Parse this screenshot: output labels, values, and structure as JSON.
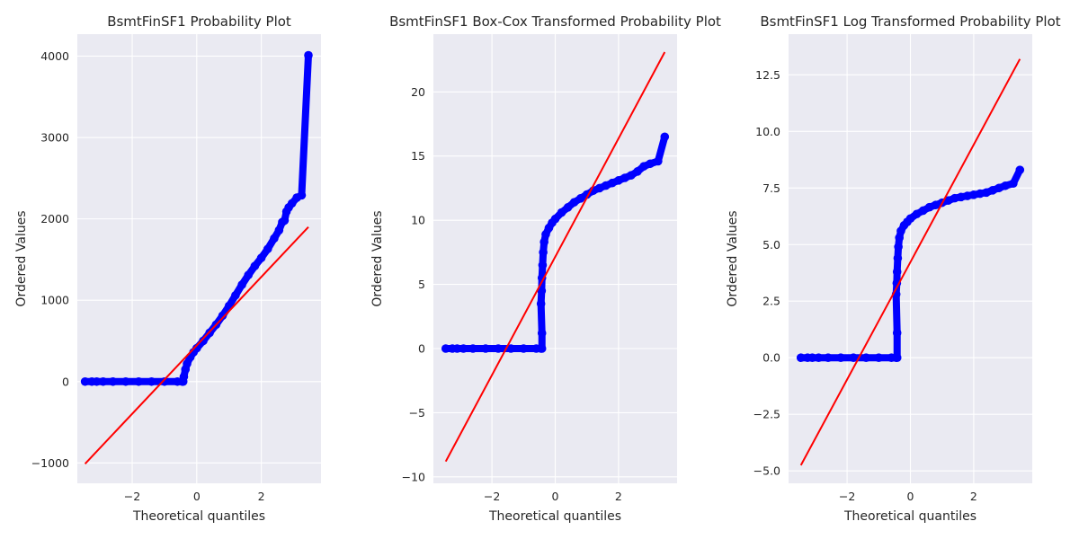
{
  "colors": {
    "axes_background": "#eaeaf2",
    "grid": "#ffffff",
    "points": "#0000ff",
    "fit_line": "#ff0000"
  },
  "chart_data": [
    {
      "type": "scatter",
      "title": "BsmtFinSF1 Probability Plot",
      "xlabel": "Theoretical quantiles",
      "ylabel": "Ordered Values",
      "xlim": [
        -3.7,
        3.85
      ],
      "ylim": [
        -1250,
        4270
      ],
      "xticks": [
        -2,
        0,
        2
      ],
      "yticks": [
        -1000,
        0,
        1000,
        2000,
        3000,
        4000
      ],
      "xtick_labels": [
        "−2",
        "0",
        "2"
      ],
      "ytick_labels": [
        "−1000",
        "0",
        "1000",
        "2000",
        "3000",
        "4000"
      ],
      "grid": true,
      "series": [
        {
          "kind": "points",
          "points": [
            [
              -3.46,
              0
            ],
            [
              -3.25,
              0
            ],
            [
              -3.1,
              0
            ],
            [
              -2.9,
              0
            ],
            [
              -2.6,
              0
            ],
            [
              -2.2,
              0
            ],
            [
              -1.8,
              0
            ],
            [
              -1.4,
              0
            ],
            [
              -1.0,
              0
            ],
            [
              -0.6,
              0
            ],
            [
              -0.45,
              0
            ],
            [
              -0.42,
              0
            ],
            [
              -0.4,
              60
            ],
            [
              -0.35,
              150
            ],
            [
              -0.3,
              220
            ],
            [
              -0.2,
              300
            ],
            [
              -0.1,
              360
            ],
            [
              0.0,
              410
            ],
            [
              0.2,
              500
            ],
            [
              0.4,
              600
            ],
            [
              0.6,
              700
            ],
            [
              0.8,
              810
            ],
            [
              1.0,
              930
            ],
            [
              1.2,
              1060
            ],
            [
              1.4,
              1190
            ],
            [
              1.6,
              1310
            ],
            [
              1.8,
              1420
            ],
            [
              2.0,
              1520
            ],
            [
              2.2,
              1630
            ],
            [
              2.4,
              1760
            ],
            [
              2.55,
              1860
            ],
            [
              2.65,
              1960
            ],
            [
              2.72,
              1980
            ],
            [
              2.78,
              2090
            ],
            [
              2.85,
              2140
            ],
            [
              2.95,
              2190
            ],
            [
              3.1,
              2260
            ],
            [
              3.25,
              2290
            ],
            [
              3.46,
              4010
            ]
          ]
        },
        {
          "kind": "line",
          "points": [
            [
              -3.46,
              -1010
            ],
            [
              3.46,
              1900
            ]
          ]
        }
      ]
    },
    {
      "type": "scatter",
      "title": "BsmtFinSF1 Box-Cox Transformed Probability Plot",
      "xlabel": "Theoretical quantiles",
      "ylabel": "Ordered Values",
      "xlim": [
        -3.85,
        3.85
      ],
      "ylim": [
        -10.5,
        24.5
      ],
      "xticks": [
        -2,
        0,
        2
      ],
      "yticks": [
        -10,
        -5,
        0,
        5,
        10,
        15,
        20
      ],
      "xtick_labels": [
        "−2",
        "0",
        "2"
      ],
      "ytick_labels": [
        "−10",
        "−5",
        "0",
        "5",
        "10",
        "15",
        "20"
      ],
      "grid": true,
      "series": [
        {
          "kind": "points",
          "points": [
            [
              -3.46,
              0
            ],
            [
              -3.25,
              0
            ],
            [
              -3.1,
              0
            ],
            [
              -2.9,
              0
            ],
            [
              -2.6,
              0
            ],
            [
              -2.2,
              0
            ],
            [
              -1.8,
              0
            ],
            [
              -1.4,
              0
            ],
            [
              -1.0,
              0
            ],
            [
              -0.6,
              0
            ],
            [
              -0.45,
              0
            ],
            [
              -0.42,
              0
            ],
            [
              -0.42,
              1.2
            ],
            [
              -0.45,
              3.5
            ],
            [
              -0.43,
              4.5
            ],
            [
              -0.42,
              5.5
            ],
            [
              -0.4,
              6.5
            ],
            [
              -0.38,
              7.5
            ],
            [
              -0.35,
              8.3
            ],
            [
              -0.3,
              8.9
            ],
            [
              -0.2,
              9.4
            ],
            [
              -0.1,
              9.8
            ],
            [
              0.0,
              10.1
            ],
            [
              0.2,
              10.6
            ],
            [
              0.4,
              11.0
            ],
            [
              0.6,
              11.4
            ],
            [
              0.8,
              11.7
            ],
            [
              1.0,
              12.0
            ],
            [
              1.2,
              12.3
            ],
            [
              1.4,
              12.5
            ],
            [
              1.6,
              12.7
            ],
            [
              1.8,
              12.9
            ],
            [
              2.0,
              13.1
            ],
            [
              2.2,
              13.3
            ],
            [
              2.4,
              13.5
            ],
            [
              2.6,
              13.8
            ],
            [
              2.8,
              14.2
            ],
            [
              3.0,
              14.4
            ],
            [
              3.25,
              14.6
            ],
            [
              3.46,
              16.5
            ]
          ]
        },
        {
          "kind": "line",
          "points": [
            [
              -3.46,
              -8.8
            ],
            [
              3.46,
              23.1
            ]
          ]
        }
      ]
    },
    {
      "type": "scatter",
      "title": "BsmtFinSF1 Log Transformed Probability Plot",
      "xlabel": "Theoretical quantiles",
      "ylabel": "Ordered Values",
      "xlim": [
        -3.85,
        3.85
      ],
      "ylim": [
        -5.55,
        14.3
      ],
      "xticks": [
        -2,
        0,
        2
      ],
      "yticks": [
        -5.0,
        -2.5,
        0.0,
        2.5,
        5.0,
        7.5,
        10.0,
        12.5
      ],
      "xtick_labels": [
        "−2",
        "0",
        "2"
      ],
      "ytick_labels": [
        "−5.0",
        "−2.5",
        "0.0",
        "2.5",
        "5.0",
        "7.5",
        "10.0",
        "12.5"
      ],
      "grid": true,
      "series": [
        {
          "kind": "points",
          "points": [
            [
              -3.46,
              0
            ],
            [
              -3.25,
              0
            ],
            [
              -3.1,
              0
            ],
            [
              -2.9,
              0
            ],
            [
              -2.6,
              0
            ],
            [
              -2.2,
              0
            ],
            [
              -1.8,
              0
            ],
            [
              -1.4,
              0
            ],
            [
              -1.0,
              0
            ],
            [
              -0.6,
              0
            ],
            [
              -0.45,
              0
            ],
            [
              -0.42,
              0
            ],
            [
              -0.42,
              1.1
            ],
            [
              -0.45,
              2.8
            ],
            [
              -0.43,
              3.3
            ],
            [
              -0.42,
              3.8
            ],
            [
              -0.4,
              4.4
            ],
            [
              -0.38,
              4.9
            ],
            [
              -0.35,
              5.3
            ],
            [
              -0.3,
              5.6
            ],
            [
              -0.2,
              5.85
            ],
            [
              -0.1,
              6.0
            ],
            [
              0.0,
              6.15
            ],
            [
              0.2,
              6.35
            ],
            [
              0.4,
              6.5
            ],
            [
              0.6,
              6.65
            ],
            [
              0.8,
              6.75
            ],
            [
              1.0,
              6.85
            ],
            [
              1.2,
              6.95
            ],
            [
              1.4,
              7.05
            ],
            [
              1.6,
              7.1
            ],
            [
              1.8,
              7.15
            ],
            [
              2.0,
              7.2
            ],
            [
              2.2,
              7.25
            ],
            [
              2.4,
              7.3
            ],
            [
              2.6,
              7.4
            ],
            [
              2.8,
              7.5
            ],
            [
              3.0,
              7.6
            ],
            [
              3.25,
              7.7
            ],
            [
              3.46,
              8.3
            ]
          ]
        },
        {
          "kind": "line",
          "points": [
            [
              -3.46,
              -4.75
            ],
            [
              3.46,
              13.2
            ]
          ]
        }
      ]
    }
  ]
}
